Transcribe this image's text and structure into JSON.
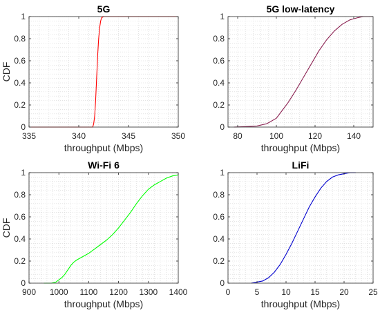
{
  "chart_data": [
    {
      "type": "line",
      "title": "5G",
      "xlabel": "throughput (Mbps)",
      "ylabel": "CDF",
      "xlim": [
        335,
        350
      ],
      "ylim": [
        0,
        1
      ],
      "xticks": [
        "335",
        "340",
        "345",
        "350"
      ],
      "yticks": [
        "0",
        "0.2",
        "0.4",
        "0.6",
        "0.8",
        "1"
      ],
      "grid": true,
      "color": "#ff0000",
      "series": [
        {
          "x": [
            335,
            341.4,
            341.5,
            341.6,
            341.7,
            341.8,
            341.9,
            342.0,
            342.1,
            342.2,
            342.3,
            342.5,
            350
          ],
          "y": [
            0,
            0,
            0.03,
            0.1,
            0.25,
            0.45,
            0.65,
            0.8,
            0.9,
            0.96,
            0.99,
            1.0,
            1.0
          ]
        }
      ]
    },
    {
      "type": "line",
      "title": "5G low-latency",
      "xlabel": "throughput (Mbps)",
      "ylabel": "",
      "xlim": [
        75,
        150
      ],
      "ylim": [
        0,
        1
      ],
      "xticks": [
        "80",
        "100",
        "120",
        "140"
      ],
      "yticks": [
        "0",
        "0.2",
        "0.4",
        "0.6",
        "0.8",
        "1"
      ],
      "grid": true,
      "color": "#8b2252",
      "series": [
        {
          "x": [
            78,
            85,
            90,
            95,
            100,
            103,
            106,
            110,
            114,
            118,
            122,
            126,
            130,
            134,
            138,
            142,
            145,
            150
          ],
          "y": [
            0,
            0.005,
            0.01,
            0.03,
            0.08,
            0.15,
            0.22,
            0.33,
            0.45,
            0.57,
            0.69,
            0.79,
            0.87,
            0.93,
            0.97,
            0.99,
            1.0,
            1.0
          ]
        }
      ]
    },
    {
      "type": "line",
      "title": "Wi-Fi 6",
      "xlabel": "throughput (Mbps)",
      "ylabel": "CDF",
      "xlim": [
        900,
        1400
      ],
      "ylim": [
        0,
        1
      ],
      "xticks": [
        "900",
        "1000",
        "1100",
        "1200",
        "1300",
        "1400"
      ],
      "yticks": [
        "0",
        "0.2",
        "0.4",
        "0.6",
        "0.8",
        "1"
      ],
      "grid": true,
      "color": "#00ff00",
      "series": [
        {
          "x": [
            950,
            975,
            990,
            1000,
            1010,
            1020,
            1030,
            1040,
            1050,
            1060,
            1080,
            1100,
            1120,
            1140,
            1160,
            1180,
            1200,
            1220,
            1240,
            1260,
            1280,
            1300,
            1320,
            1340,
            1360,
            1380,
            1400
          ],
          "y": [
            0,
            0,
            0.01,
            0.03,
            0.05,
            0.08,
            0.12,
            0.16,
            0.19,
            0.21,
            0.24,
            0.27,
            0.31,
            0.35,
            0.39,
            0.44,
            0.5,
            0.57,
            0.64,
            0.72,
            0.79,
            0.85,
            0.89,
            0.92,
            0.95,
            0.97,
            0.98
          ]
        }
      ]
    },
    {
      "type": "line",
      "title": "LiFi",
      "xlabel": "throughput (Mbps)",
      "ylabel": "",
      "xlim": [
        0,
        25
      ],
      "ylim": [
        0,
        1
      ],
      "xticks": [
        "0",
        "5",
        "10",
        "15",
        "20",
        "25"
      ],
      "yticks": [
        "0",
        "0.2",
        "0.4",
        "0.6",
        "0.8",
        "1"
      ],
      "grid": true,
      "color": "#0000cd",
      "series": [
        {
          "x": [
            4,
            5,
            6,
            7,
            8,
            9,
            10,
            11,
            12,
            13,
            14,
            15,
            16,
            17,
            18,
            19,
            20,
            21,
            22
          ],
          "y": [
            0,
            0.01,
            0.02,
            0.05,
            0.1,
            0.17,
            0.26,
            0.36,
            0.47,
            0.58,
            0.69,
            0.78,
            0.86,
            0.92,
            0.96,
            0.98,
            0.99,
            1.0,
            1.0
          ]
        }
      ]
    }
  ]
}
